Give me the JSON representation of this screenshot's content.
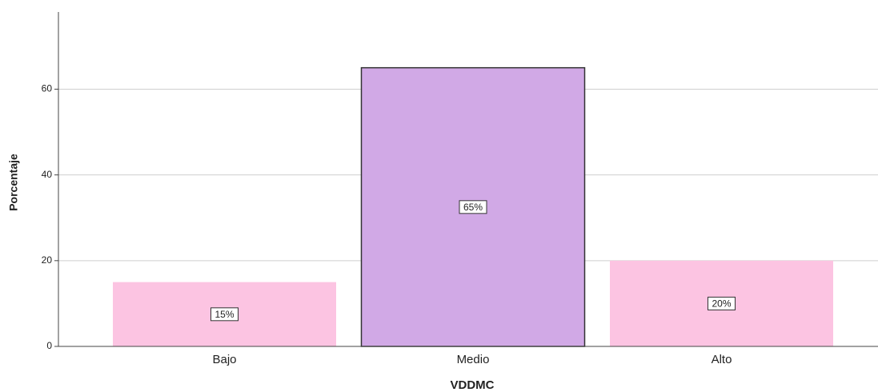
{
  "chart_data": {
    "type": "bar",
    "categories": [
      "Bajo",
      "Medio",
      "Alto"
    ],
    "values": [
      15,
      65,
      20
    ],
    "value_labels": [
      "15%",
      "65%",
      "20%"
    ],
    "colors": [
      "#fcc4e2",
      "#d1a9e6",
      "#fcc4e2"
    ],
    "edgecolors": [
      "none",
      "#333333",
      "none"
    ],
    "xlabel": "VDDMC",
    "ylabel": "Porcentaje",
    "ylim": [
      0,
      78
    ],
    "yticks": [
      0,
      20,
      40,
      60
    ],
    "grid": true
  }
}
